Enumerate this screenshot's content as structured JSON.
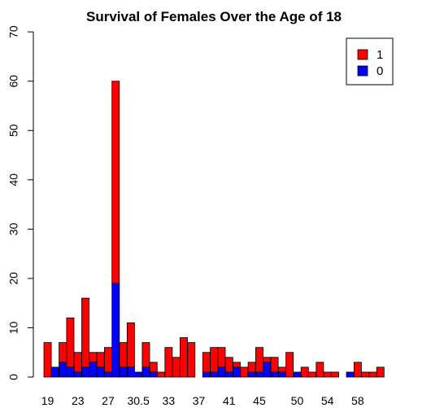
{
  "chart_data": {
    "type": "bar",
    "stacked": true,
    "title": "Survival of Females Over the Age of 18",
    "xlabel": "",
    "ylabel": "",
    "ylim": [
      0,
      70
    ],
    "yticks": [
      0,
      10,
      20,
      30,
      40,
      50,
      60,
      70
    ],
    "xtick_labels": [
      "19",
      "23",
      "27",
      "30.5",
      "33",
      "37",
      "41",
      "45",
      "50",
      "54",
      "58"
    ],
    "legend_position": "top-right",
    "grid": false,
    "categories": [
      "19",
      "20",
      "21",
      "22",
      "23",
      "24",
      "25",
      "26",
      "27",
      "28",
      "29",
      "30",
      "30.5",
      "31",
      "32",
      "32.5",
      "33",
      "34",
      "35",
      "36",
      "37",
      "38",
      "39",
      "40",
      "41",
      "42",
      "43",
      "44",
      "45",
      "46",
      "47",
      "48",
      "49",
      "50",
      "51",
      "52",
      "53",
      "54",
      "55",
      "56",
      "57",
      "58",
      "59",
      "60",
      "61",
      "62",
      "63"
    ],
    "series": [
      {
        "name": "0",
        "color": "#0000ff",
        "values": [
          0,
          2,
          3,
          2,
          1,
          2,
          3,
          2,
          1,
          19,
          2,
          2,
          1,
          2,
          1,
          0,
          0,
          0,
          0,
          0,
          0,
          1,
          1,
          2,
          1,
          2,
          0,
          1,
          1,
          3,
          1,
          1,
          0,
          1,
          0,
          0,
          0,
          0,
          0,
          0,
          1,
          0,
          0,
          0,
          0,
          0,
          0
        ]
      },
      {
        "name": "1",
        "color": "#ff0000",
        "values": [
          7,
          0,
          4,
          10,
          4,
          14,
          2,
          3,
          5,
          41,
          5,
          9,
          0,
          5,
          2,
          1,
          6,
          4,
          8,
          7,
          0,
          4,
          5,
          4,
          3,
          1,
          2,
          2,
          5,
          1,
          3,
          1,
          5,
          0,
          2,
          1,
          3,
          1,
          1,
          0,
          0,
          3,
          1,
          1,
          2,
          0,
          0
        ]
      }
    ],
    "legend": [
      {
        "label": "1",
        "color": "#ff0000"
      },
      {
        "label": "0",
        "color": "#0000ff"
      }
    ]
  }
}
